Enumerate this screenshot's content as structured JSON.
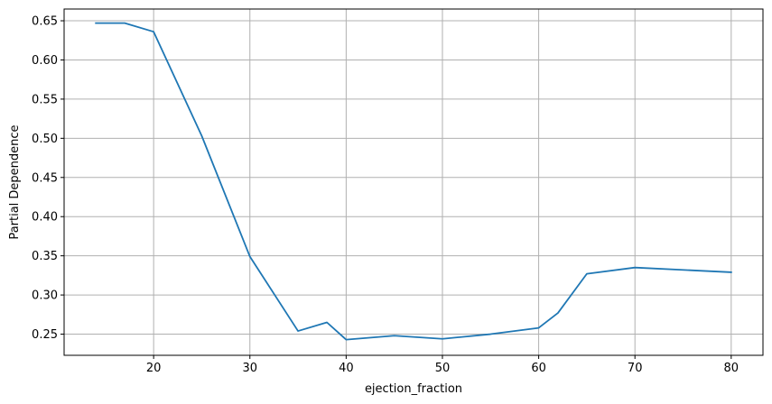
{
  "chart_data": {
    "type": "line",
    "title": "",
    "xlabel": "ejection_fraction",
    "ylabel": "Partial Dependence",
    "xlim": [
      10.7,
      83.3
    ],
    "ylim": [
      0.223,
      0.665
    ],
    "xticks": [
      20,
      30,
      40,
      50,
      60,
      70,
      80
    ],
    "yticks": [
      0.25,
      0.3,
      0.35,
      0.4,
      0.45,
      0.5,
      0.55,
      0.6,
      0.65
    ],
    "grid": true,
    "series": [
      {
        "color": "#1f77b4",
        "x": [
          14,
          17,
          20,
          25,
          30,
          35,
          38,
          40,
          45,
          50,
          55,
          60,
          62,
          65,
          70,
          80
        ],
        "y": [
          0.647,
          0.647,
          0.636,
          0.503,
          0.349,
          0.254,
          0.265,
          0.243,
          0.248,
          0.244,
          0.25,
          0.258,
          0.277,
          0.327,
          0.335,
          0.329
        ]
      }
    ]
  }
}
